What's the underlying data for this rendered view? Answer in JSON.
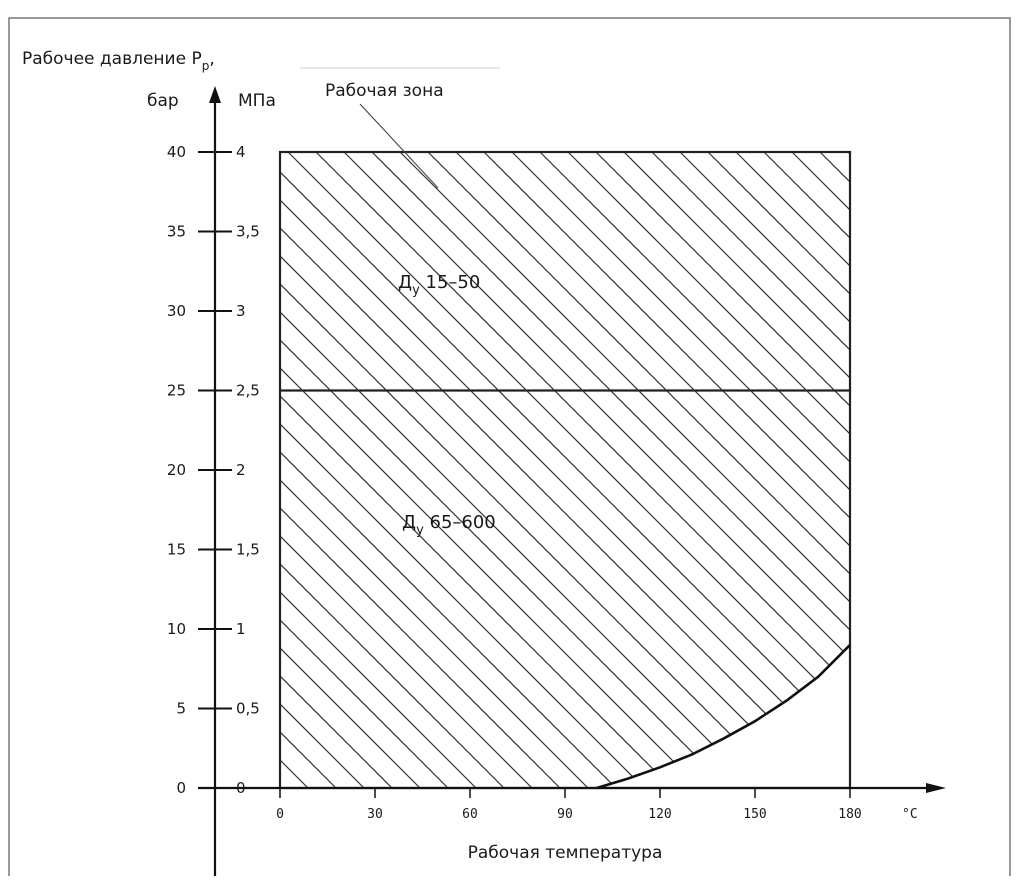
{
  "chart_data": {
    "type": "area",
    "y_title": "Рабочее давление P",
    "y_title_sub": "р",
    "y_title_suffix": ",",
    "y_unit_bar": "бар",
    "y_unit_mpa": "МПа",
    "x_title": "Рабочая температура",
    "x_unit": "°C",
    "x_ticks": [
      0,
      30,
      60,
      90,
      120,
      150,
      180
    ],
    "y_ticks_bar": [
      "0",
      "5",
      "10",
      "15",
      "20",
      "25",
      "30",
      "35",
      "40"
    ],
    "y_ticks_mpa": [
      "0",
      "0,5",
      "1",
      "1,5",
      "2",
      "2,5",
      "3",
      "3,5",
      "4"
    ],
    "xlim": [
      0,
      180
    ],
    "ylim_bar": [
      0,
      40
    ],
    "zone_label": "Рабочая зона",
    "regions": [
      {
        "label_main": "Д",
        "label_sub": "у",
        "label_rest": " 15–50",
        "p_min_bar": 25,
        "p_max_bar": 40
      },
      {
        "label_main": "Д",
        "label_sub": "у",
        "label_rest": " 65–600",
        "p_min_bar": 0,
        "p_max_bar": 25
      }
    ],
    "boundary_curve": {
      "x": [
        100,
        110,
        120,
        130,
        140,
        150,
        160,
        170,
        180
      ],
      "y_bar": [
        0,
        0.6,
        1.3,
        2.1,
        3.1,
        4.2,
        5.5,
        7.0,
        9.0
      ]
    }
  }
}
